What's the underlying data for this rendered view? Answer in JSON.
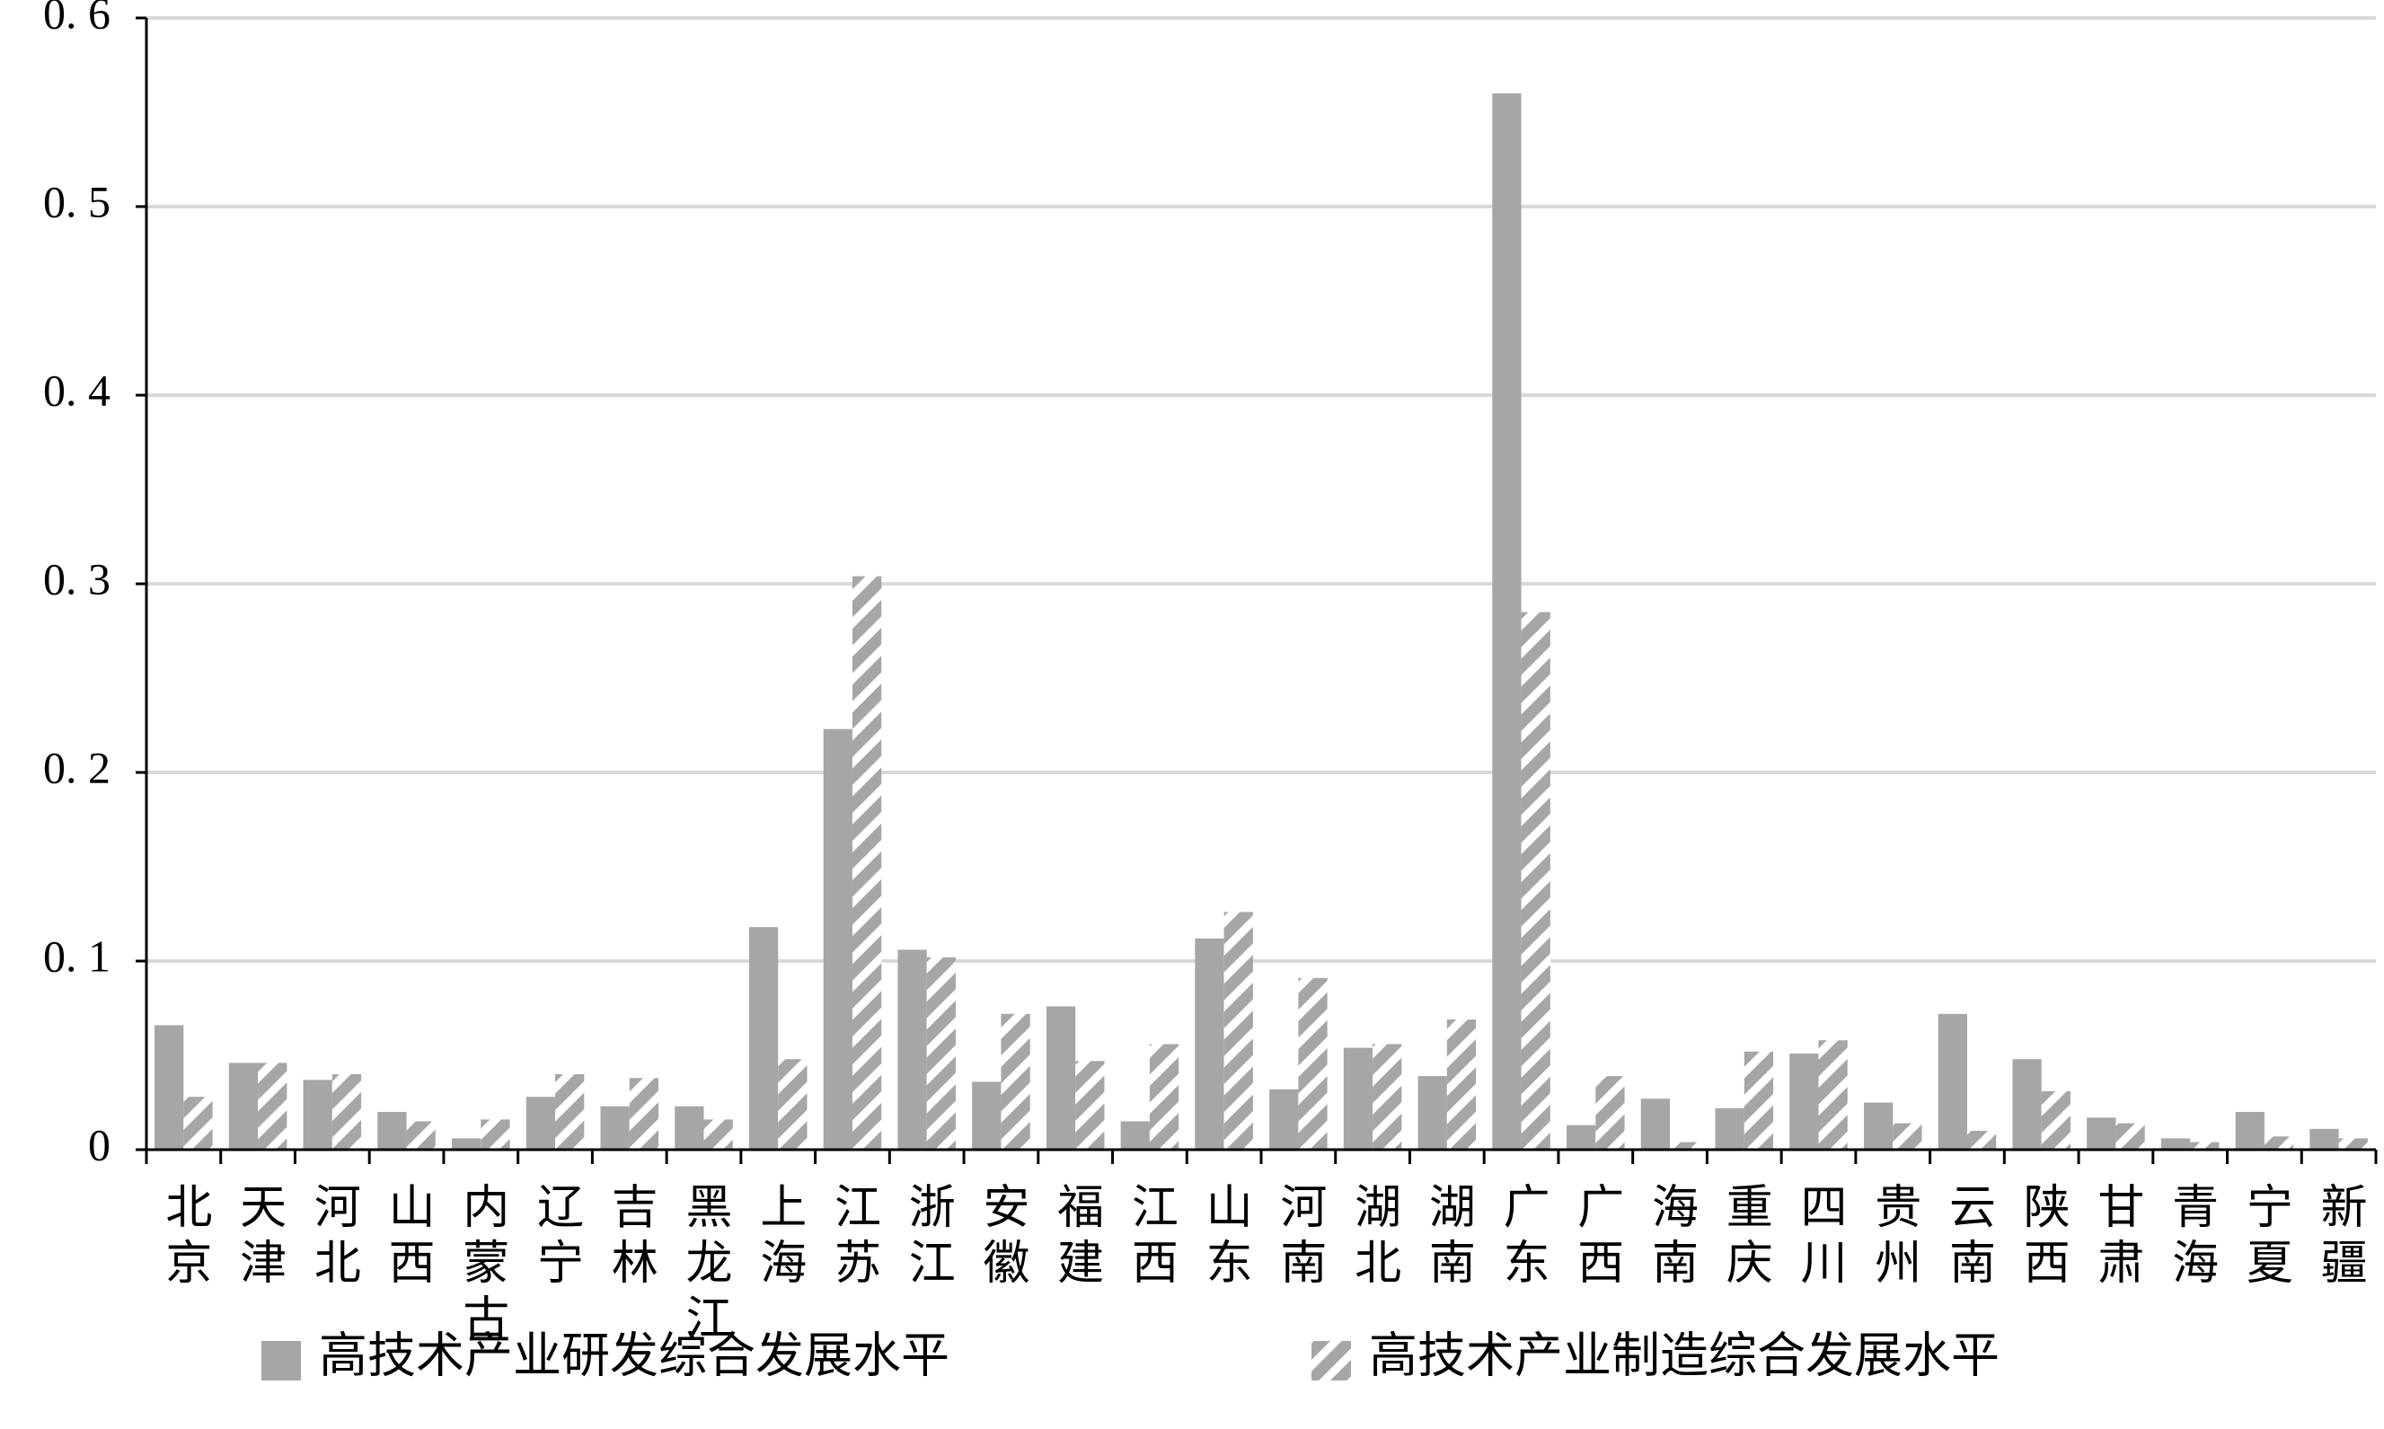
{
  "chart_data": {
    "type": "bar",
    "categories": [
      "北京",
      "天津",
      "河北",
      "山西",
      "内蒙古",
      "辽宁",
      "吉林",
      "黑龙江",
      "上海",
      "江苏",
      "浙江",
      "安徽",
      "福建",
      "江西",
      "山东",
      "河南",
      "湖北",
      "湖南",
      "广东",
      "广西",
      "海南",
      "重庆",
      "四川",
      "贵州",
      "云南",
      "陕西",
      "甘肃",
      "青海",
      "宁夏",
      "新疆"
    ],
    "series": [
      {
        "name": "高技术产业研发综合发展水平",
        "color": "#a6a6a6",
        "fill_style": "solid",
        "values": [
          0.066,
          0.046,
          0.037,
          0.02,
          0.006,
          0.028,
          0.023,
          0.023,
          0.118,
          0.223,
          0.106,
          0.036,
          0.076,
          0.015,
          0.112,
          0.032,
          0.054,
          0.039,
          0.56,
          0.013,
          0.027,
          0.022,
          0.051,
          0.025,
          0.072,
          0.048,
          0.017,
          0.006,
          0.02,
          0.011
        ]
      },
      {
        "name": "高技术产业制造综合发展水平",
        "color": "#a6a6a6",
        "fill_style": "hatched",
        "values": [
          0.028,
          0.046,
          0.04,
          0.015,
          0.016,
          0.04,
          0.038,
          0.016,
          0.048,
          0.304,
          0.102,
          0.072,
          0.047,
          0.056,
          0.126,
          0.091,
          0.056,
          0.069,
          0.285,
          0.039,
          0.004,
          0.052,
          0.058,
          0.014,
          0.01,
          0.031,
          0.014,
          0.004,
          0.007,
          0.006
        ]
      }
    ],
    "ylim": [
      0,
      0.6
    ],
    "yticks": [
      0,
      {
        "value": 0.1,
        "label": "0. 1"
      },
      {
        "value": 0.2,
        "label": "0. 2"
      },
      {
        "value": 0.3,
        "label": "0. 3"
      },
      {
        "value": 0.4,
        "label": "0. 4"
      },
      {
        "value": 0.5,
        "label": "0. 5"
      },
      {
        "value": 0.6,
        "label": "0. 6"
      }
    ],
    "grid": true,
    "legend": "bottom"
  }
}
